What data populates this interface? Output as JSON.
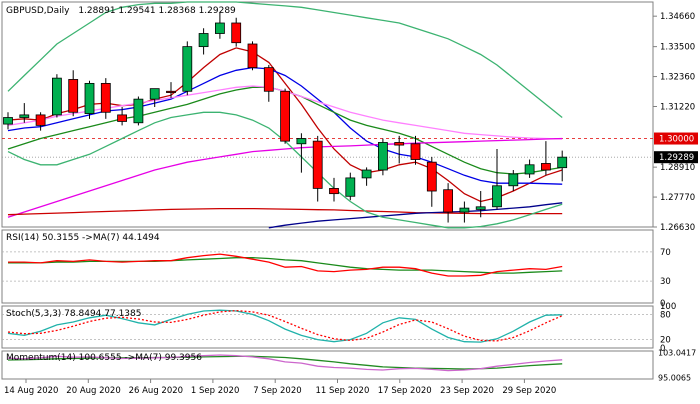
{
  "header": {
    "symbol": "GBPUSD,Daily",
    "ohlc": "1.28891 1.29541 1.28368 1.29289"
  },
  "colors": {
    "bull": "#00b050",
    "bear": "#ff0000",
    "ma_red": "#c00000",
    "ma_blue": "#0000e6",
    "ma_green": "#1a8a1a",
    "ma_pink": "#ff80ff",
    "ma_magenta": "#e600e6",
    "ma_darkred": "#cc0000",
    "ma_navy": "#00008b",
    "bb": "#3cb371",
    "level_line": "#e00000",
    "stoch_main": "#20b2aa",
    "stoch_signal": "#ff0000",
    "momentum": "#cc66cc",
    "momentum_signal": "#228b22"
  },
  "chart_data": [
    {
      "type": "candlestick",
      "title": "GBPUSD,Daily",
      "ylim": [
        1.2663,
        1.352
      ],
      "y_ticks": [
        "1.34660",
        "1.33500",
        "1.32360",
        "1.31220",
        "1.28910",
        "1.27770",
        "1.26630"
      ],
      "highlight_levels": [
        {
          "label": "1.30000",
          "value": 1.3,
          "style": "dashed-red"
        },
        {
          "label": "1.29289",
          "value": 1.29289,
          "style": "current-price"
        }
      ],
      "x_labels": [
        "14 Aug 2020",
        "20 Aug 2020",
        "26 Aug 2020",
        "1 Sep 2020",
        "7 Sep 2020",
        "11 Sep 2020",
        "17 Sep 2020",
        "23 Sep 2020",
        "29 Sep 2020"
      ],
      "candles": [
        {
          "o": 1.3055,
          "h": 1.31,
          "l": 1.3035,
          "c": 1.308
        },
        {
          "o": 1.308,
          "h": 1.3135,
          "l": 1.306,
          "c": 1.309
        },
        {
          "o": 1.309,
          "h": 1.31,
          "l": 1.303,
          "c": 1.305
        },
        {
          "o": 1.309,
          "h": 1.3245,
          "l": 1.308,
          "c": 1.323
        },
        {
          "o": 1.3225,
          "h": 1.326,
          "l": 1.3085,
          "c": 1.31
        },
        {
          "o": 1.3095,
          "h": 1.322,
          "l": 1.3075,
          "c": 1.321
        },
        {
          "o": 1.321,
          "h": 1.323,
          "l": 1.3075,
          "c": 1.31
        },
        {
          "o": 1.309,
          "h": 1.312,
          "l": 1.305,
          "c": 1.3065
        },
        {
          "o": 1.306,
          "h": 1.316,
          "l": 1.305,
          "c": 1.315
        },
        {
          "o": 1.315,
          "h": 1.319,
          "l": 1.312,
          "c": 1.319
        },
        {
          "o": 1.318,
          "h": 1.3215,
          "l": 1.3155,
          "c": 1.3175
        },
        {
          "o": 1.318,
          "h": 1.337,
          "l": 1.3165,
          "c": 1.335
        },
        {
          "o": 1.335,
          "h": 1.342,
          "l": 1.332,
          "c": 1.34
        },
        {
          "o": 1.34,
          "h": 1.348,
          "l": 1.338,
          "c": 1.344
        },
        {
          "o": 1.344,
          "h": 1.346,
          "l": 1.335,
          "c": 1.3365
        },
        {
          "o": 1.336,
          "h": 1.337,
          "l": 1.326,
          "c": 1.327
        },
        {
          "o": 1.327,
          "h": 1.328,
          "l": 1.314,
          "c": 1.318
        },
        {
          "o": 1.318,
          "h": 1.319,
          "l": 1.298,
          "c": 1.299
        },
        {
          "o": 1.298,
          "h": 1.302,
          "l": 1.287,
          "c": 1.3
        },
        {
          "o": 1.299,
          "h": 1.301,
          "l": 1.276,
          "c": 1.281
        },
        {
          "o": 1.281,
          "h": 1.285,
          "l": 1.276,
          "c": 1.279
        },
        {
          "o": 1.278,
          "h": 1.287,
          "l": 1.2765,
          "c": 1.285
        },
        {
          "o": 1.285,
          "h": 1.289,
          "l": 1.282,
          "c": 1.288
        },
        {
          "o": 1.288,
          "h": 1.3,
          "l": 1.286,
          "c": 1.2985
        },
        {
          "o": 1.2985,
          "h": 1.301,
          "l": 1.2905,
          "c": 1.2975
        },
        {
          "o": 1.298,
          "h": 1.301,
          "l": 1.29,
          "c": 1.292
        },
        {
          "o": 1.291,
          "h": 1.293,
          "l": 1.274,
          "c": 1.28
        },
        {
          "o": 1.2805,
          "h": 1.283,
          "l": 1.268,
          "c": 1.272
        },
        {
          "o": 1.272,
          "h": 1.276,
          "l": 1.268,
          "c": 1.2735
        },
        {
          "o": 1.273,
          "h": 1.28,
          "l": 1.27,
          "c": 1.274
        },
        {
          "o": 1.274,
          "h": 1.296,
          "l": 1.273,
          "c": 1.282
        },
        {
          "o": 1.282,
          "h": 1.288,
          "l": 1.28,
          "c": 1.2865
        },
        {
          "o": 1.2865,
          "h": 1.292,
          "l": 1.285,
          "c": 1.29
        },
        {
          "o": 1.2905,
          "h": 1.299,
          "l": 1.286,
          "c": 1.288
        },
        {
          "o": 1.2889,
          "h": 1.2954,
          "l": 1.2837,
          "c": 1.2929
        }
      ],
      "overlays": [
        {
          "color_key": "ma_red",
          "values": [
            1.307,
            1.3075,
            1.307,
            1.3095,
            1.311,
            1.313,
            1.3135,
            1.3125,
            1.313,
            1.315,
            1.3165,
            1.3215,
            1.327,
            1.332,
            1.3345,
            1.333,
            1.329,
            1.321,
            1.313,
            1.304,
            1.296,
            1.29,
            1.287,
            1.288,
            1.29,
            1.291,
            1.2885,
            1.284,
            1.279,
            1.276,
            1.2775,
            1.28,
            1.283,
            1.286,
            1.288
          ]
        },
        {
          "color_key": "ma_blue",
          "values": [
            1.303,
            1.304,
            1.3045,
            1.306,
            1.3075,
            1.309,
            1.3105,
            1.311,
            1.312,
            1.3135,
            1.315,
            1.318,
            1.321,
            1.324,
            1.326,
            1.327,
            1.3265,
            1.324,
            1.32,
            1.315,
            1.31,
            1.304,
            1.299,
            1.296,
            1.294,
            1.293,
            1.291,
            1.2885,
            1.286,
            1.284,
            1.283,
            1.283,
            1.283,
            1.2828,
            1.2826
          ]
        },
        {
          "color_key": "ma_green",
          "values": [
            1.296,
            1.298,
            1.3,
            1.3015,
            1.303,
            1.3045,
            1.306,
            1.3075,
            1.3085,
            1.31,
            1.3115,
            1.313,
            1.315,
            1.317,
            1.3185,
            1.3195,
            1.3195,
            1.318,
            1.316,
            1.313,
            1.31,
            1.307,
            1.305,
            1.3035,
            1.302,
            1.3,
            1.297,
            1.294,
            1.291,
            1.2885,
            1.287,
            1.2865,
            1.287,
            1.288,
            1.289
          ]
        },
        {
          "color_key": "ma_pink",
          "values": [
            1.305,
            1.306,
            1.307,
            1.3085,
            1.3095,
            1.3105,
            1.3115,
            1.3125,
            1.3135,
            1.3145,
            1.3155,
            1.3165,
            1.3175,
            1.3185,
            1.3195,
            1.32,
            1.3195,
            1.318,
            1.316,
            1.314,
            1.312,
            1.31,
            1.3085,
            1.307,
            1.306,
            1.305,
            1.304,
            1.303,
            1.302,
            1.3015,
            1.301,
            1.3005,
            1.3002,
            1.3,
            1.2998
          ]
        },
        {
          "color_key": "ma_magenta",
          "values": [
            1.27,
            1.272,
            1.274,
            1.276,
            1.278,
            1.28,
            1.282,
            1.284,
            1.286,
            1.288,
            1.2895,
            1.291,
            1.292,
            1.293,
            1.294,
            1.295,
            1.2955,
            1.296,
            1.2965,
            1.2968,
            1.297,
            1.2972,
            1.2975,
            1.2978,
            1.298,
            1.2982,
            1.2984,
            1.2986,
            1.2988,
            1.299,
            1.2992,
            1.2994,
            1.2996,
            1.2998,
            1.3
          ]
        },
        {
          "color_key": "ma_darkred",
          "values": [
            1.271,
            1.2712,
            1.2714,
            1.2716,
            1.2718,
            1.272,
            1.2722,
            1.2724,
            1.2726,
            1.2728,
            1.273,
            1.2731,
            1.2732,
            1.2733,
            1.2733,
            1.2733,
            1.2732,
            1.2731,
            1.273,
            1.2729,
            1.2728,
            1.2726,
            1.2724,
            1.2722,
            1.272,
            1.2718,
            1.2717,
            1.2716,
            1.2715,
            1.2714,
            1.2714,
            1.2714,
            1.2714,
            1.2714,
            1.2714
          ]
        },
        {
          "color_key": "ma_navy",
          "values": [
            null,
            null,
            null,
            null,
            null,
            null,
            null,
            null,
            null,
            null,
            null,
            null,
            null,
            null,
            null,
            null,
            1.266,
            1.267,
            1.2678,
            1.2685,
            1.269,
            1.2695,
            1.27,
            1.2705,
            1.271,
            1.2715,
            1.2718,
            1.272,
            1.2722,
            1.2725,
            1.273,
            1.2735,
            1.274,
            1.2748,
            1.2755
          ]
        },
        {
          "color_key": "bb",
          "values": [
            1.318,
            1.324,
            1.33,
            1.336,
            1.34,
            1.344,
            1.348,
            1.35,
            1.351,
            1.3515,
            1.3515,
            1.352,
            1.352,
            1.352,
            1.352,
            1.3515,
            1.351,
            1.3505,
            1.35,
            1.349,
            1.348,
            1.347,
            1.346,
            1.345,
            1.344,
            1.342,
            1.34,
            1.338,
            1.335,
            1.332,
            1.328,
            1.323,
            1.318,
            1.313,
            1.308
          ]
        },
        {
          "color_key": "bb",
          "values": [
            1.295,
            1.292,
            1.29,
            1.29,
            1.292,
            1.294,
            1.297,
            1.3,
            1.303,
            1.306,
            1.308,
            1.309,
            1.31,
            1.31,
            1.309,
            1.307,
            1.304,
            1.299,
            1.293,
            1.287,
            1.281,
            1.276,
            1.272,
            1.27,
            1.269,
            1.268,
            1.267,
            1.266,
            1.266,
            1.2665,
            1.2675,
            1.269,
            1.271,
            1.273,
            1.275
          ]
        }
      ]
    },
    {
      "type": "line",
      "title": "RSI(14) 50.3155 ->MA(7) 44.1494",
      "ylim": [
        0,
        100
      ],
      "y_ticks": [
        "70",
        "30",
        "0"
      ],
      "levels": [
        70,
        30
      ],
      "series": [
        {
          "name": "RSI(14)",
          "color_key": "bear",
          "values": [
            56,
            56,
            55,
            58,
            57,
            59,
            57,
            56,
            57,
            58,
            58,
            62,
            65,
            67,
            64,
            60,
            56,
            49,
            50,
            44,
            43,
            45,
            46,
            49,
            49,
            47,
            41,
            37,
            37,
            38,
            43,
            45,
            47,
            46,
            50
          ]
        },
        {
          "name": "MA(7)",
          "color_key": "ma_green",
          "values": [
            55,
            55,
            55,
            56,
            56,
            57,
            57,
            57,
            57,
            57,
            58,
            59,
            60,
            61,
            62,
            62,
            61,
            59,
            58,
            55,
            52,
            49,
            47,
            46,
            45,
            45,
            45,
            44,
            43,
            42,
            41,
            41,
            42,
            43,
            44
          ]
        }
      ]
    },
    {
      "type": "line",
      "title": "Stoch(5,3,3) 78.8494 77.1385",
      "ylim": [
        0,
        100
      ],
      "y_ticks": [
        "100",
        "80",
        "20",
        "0"
      ],
      "levels": [
        80,
        20
      ],
      "series": [
        {
          "name": "Main",
          "color_key": "stoch_main",
          "values": [
            35,
            30,
            40,
            55,
            62,
            72,
            78,
            70,
            60,
            55,
            68,
            80,
            88,
            90,
            88,
            80,
            65,
            45,
            30,
            20,
            15,
            20,
            35,
            60,
            72,
            68,
            45,
            25,
            15,
            14,
            22,
            40,
            62,
            78,
            79
          ]
        },
        {
          "name": "Signal",
          "color_key": "stoch_signal",
          "values": [
            38,
            34,
            35,
            42,
            52,
            63,
            71,
            73,
            69,
            62,
            61,
            68,
            78,
            86,
            89,
            86,
            78,
            63,
            47,
            32,
            22,
            18,
            23,
            38,
            56,
            67,
            62,
            46,
            28,
            18,
            17,
            25,
            41,
            60,
            77
          ]
        }
      ]
    },
    {
      "type": "line",
      "title": "Momentum(14) 100.6555 ->MA(7) 99.3956",
      "ylim": [
        94.5,
        103.5
      ],
      "y_ticks": [
        "103.0417",
        "95.0065"
      ],
      "series": [
        {
          "name": "Momentum(14)",
          "color_key": "momentum",
          "values": [
            101.2,
            101.0,
            101.3,
            101.8,
            101.5,
            101.6,
            101.3,
            101.1,
            101.2,
            101.3,
            101.4,
            101.8,
            102.0,
            102.2,
            102.0,
            101.6,
            101.0,
            100.0,
            99.6,
            98.6,
            98.2,
            98.0,
            97.6,
            97.4,
            97.8,
            97.9,
            97.6,
            97.2,
            97.4,
            97.8,
            98.6,
            99.2,
            99.8,
            100.3,
            100.66
          ]
        },
        {
          "name": "MA(7)",
          "color_key": "momentum_signal",
          "values": [
            100.6,
            100.7,
            100.8,
            101.0,
            101.1,
            101.2,
            101.3,
            101.3,
            101.3,
            101.4,
            101.4,
            101.5,
            101.6,
            101.7,
            101.8,
            101.8,
            101.6,
            101.4,
            101.0,
            100.5,
            100.0,
            99.4,
            98.9,
            98.4,
            98.2,
            98.0,
            97.9,
            97.8,
            97.7,
            97.8,
            98.0,
            98.4,
            98.8,
            99.1,
            99.4
          ]
        }
      ]
    }
  ]
}
